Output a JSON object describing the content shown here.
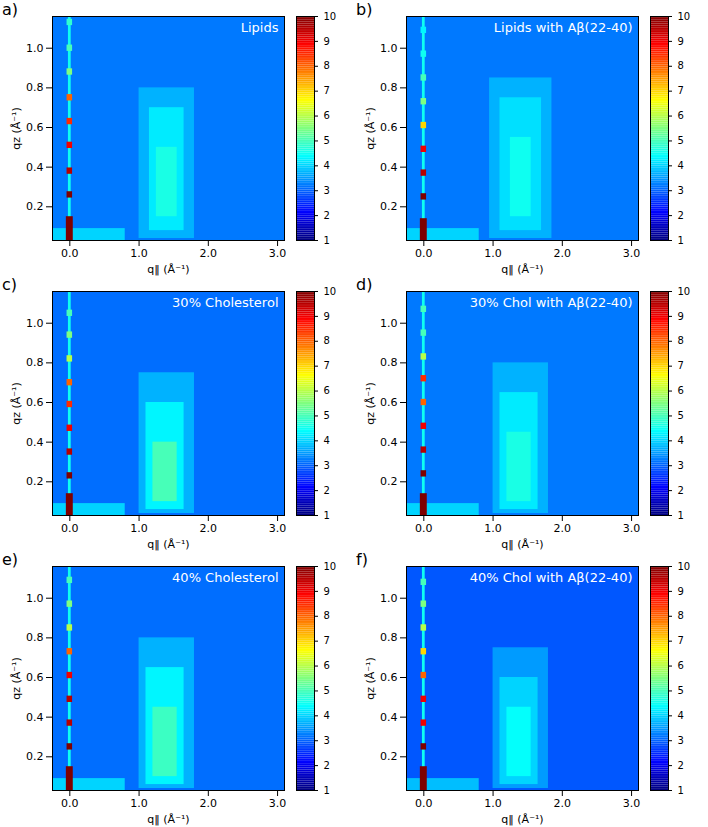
{
  "chart_data": [
    {
      "type": "heatmap",
      "panel": "a)",
      "title": "Lipids",
      "x_label": "q‖ (Å⁻¹)",
      "y_label": "qz (Å⁻¹)",
      "xlim": [
        -0.25,
        3.1
      ],
      "xticks": [
        0,
        1,
        2,
        3
      ],
      "ylim": [
        0.03,
        1.16
      ],
      "yticks": [
        0.2,
        0.4,
        0.6,
        0.8,
        1
      ],
      "colorbar": {
        "lim": [
          1,
          10
        ],
        "ticks": [
          1,
          2,
          3,
          4,
          5,
          6,
          7,
          8,
          9,
          10
        ]
      },
      "cells": [
        {
          "x": [
            -0.25,
            3.1
          ],
          "y": [
            0.03,
            1.16
          ],
          "value": 3.2
        },
        {
          "x": [
            -0.25,
            0.8
          ],
          "y": [
            0.03,
            0.09
          ],
          "value": 4.0
        },
        {
          "x": [
            1.0,
            1.8
          ],
          "y": [
            0.04,
            0.8
          ],
          "value": 3.7
        },
        {
          "x": [
            1.15,
            1.65
          ],
          "y": [
            0.08,
            0.7
          ],
          "value": 4.2
        },
        {
          "x": [
            1.25,
            1.55
          ],
          "y": [
            0.15,
            0.5
          ],
          "value": 4.6
        },
        {
          "x": [
            -0.02,
            0.02
          ],
          "y": [
            0.03,
            1.16
          ],
          "value": 4.5
        },
        {
          "x": [
            -0.05,
            0.05
          ],
          "y": [
            0.03,
            0.15
          ],
          "value": 10
        },
        {
          "x": [
            -0.04,
            0.04
          ],
          "y": [
            0.244,
            0.276
          ],
          "value": 10
        },
        {
          "x": [
            -0.04,
            0.04
          ],
          "y": [
            0.364,
            0.396
          ],
          "value": 9.5
        },
        {
          "x": [
            -0.04,
            0.04
          ],
          "y": [
            0.494,
            0.526
          ],
          "value": 9
        },
        {
          "x": [
            -0.04,
            0.04
          ],
          "y": [
            0.614,
            0.646
          ],
          "value": 8.5
        },
        {
          "x": [
            -0.04,
            0.04
          ],
          "y": [
            0.734,
            0.766
          ],
          "value": 8
        },
        {
          "x": [
            -0.04,
            0.04
          ],
          "y": [
            0.864,
            0.896
          ],
          "value": 5.5
        },
        {
          "x": [
            -0.04,
            0.04
          ],
          "y": [
            0.984,
            1.016
          ],
          "value": 5
        },
        {
          "x": [
            -0.04,
            0.04
          ],
          "y": [
            1.114,
            1.146
          ],
          "value": 4.8
        }
      ]
    },
    {
      "type": "heatmap",
      "panel": "b)",
      "title": "Lipids with Aβ(22-40)",
      "x_label": "q‖ (Å⁻¹)",
      "y_label": "qz (Å⁻¹)",
      "xlim": [
        -0.25,
        3.1
      ],
      "xticks": [
        0,
        1,
        2,
        3
      ],
      "ylim": [
        0.03,
        1.16
      ],
      "yticks": [
        0.2,
        0.4,
        0.6,
        0.8,
        1
      ],
      "colorbar": {
        "lim": [
          1,
          10
        ],
        "ticks": [
          1,
          2,
          3,
          4,
          5,
          6,
          7,
          8,
          9,
          10
        ]
      },
      "cells": [
        {
          "x": [
            -0.25,
            3.1
          ],
          "y": [
            0.03,
            1.16
          ],
          "value": 3.2
        },
        {
          "x": [
            -0.25,
            0.8
          ],
          "y": [
            0.03,
            0.09
          ],
          "value": 4.0
        },
        {
          "x": [
            0.95,
            1.85
          ],
          "y": [
            0.04,
            0.85
          ],
          "value": 3.7
        },
        {
          "x": [
            1.1,
            1.7
          ],
          "y": [
            0.08,
            0.75
          ],
          "value": 4.1
        },
        {
          "x": [
            1.25,
            1.55
          ],
          "y": [
            0.15,
            0.55
          ],
          "value": 4.5
        },
        {
          "x": [
            -0.02,
            0.02
          ],
          "y": [
            0.03,
            1.16
          ],
          "value": 4.5
        },
        {
          "x": [
            -0.05,
            0.05
          ],
          "y": [
            0.03,
            0.14
          ],
          "value": 10
        },
        {
          "x": [
            -0.04,
            0.04
          ],
          "y": [
            0.234,
            0.266
          ],
          "value": 10
        },
        {
          "x": [
            -0.04,
            0.04
          ],
          "y": [
            0.354,
            0.386
          ],
          "value": 9.5
        },
        {
          "x": [
            -0.04,
            0.04
          ],
          "y": [
            0.474,
            0.506
          ],
          "value": 9
        },
        {
          "x": [
            -0.04,
            0.04
          ],
          "y": [
            0.594,
            0.626
          ],
          "value": 7
        },
        {
          "x": [
            -0.04,
            0.04
          ],
          "y": [
            0.714,
            0.746
          ],
          "value": 5.5
        },
        {
          "x": [
            -0.04,
            0.04
          ],
          "y": [
            0.834,
            0.866
          ],
          "value": 5
        },
        {
          "x": [
            -0.04,
            0.04
          ],
          "y": [
            0.954,
            0.986
          ],
          "value": 4.5
        },
        {
          "x": [
            -0.04,
            0.04
          ],
          "y": [
            1.074,
            1.106
          ],
          "value": 4.3
        }
      ]
    },
    {
      "type": "heatmap",
      "panel": "c)",
      "title": "30% Cholesterol",
      "x_label": "q‖ (Å⁻¹)",
      "y_label": "qz (Å⁻¹)",
      "xlim": [
        -0.25,
        3.1
      ],
      "xticks": [
        0,
        1,
        2,
        3
      ],
      "ylim": [
        0.03,
        1.16
      ],
      "yticks": [
        0.2,
        0.4,
        0.6,
        0.8,
        1
      ],
      "colorbar": {
        "lim": [
          1,
          10
        ],
        "ticks": [
          1,
          2,
          3,
          4,
          5,
          6,
          7,
          8,
          9,
          10
        ]
      },
      "cells": [
        {
          "x": [
            -0.25,
            3.1
          ],
          "y": [
            0.03,
            1.16
          ],
          "value": 3.1
        },
        {
          "x": [
            -0.25,
            0.8
          ],
          "y": [
            0.03,
            0.09
          ],
          "value": 4.0
        },
        {
          "x": [
            1.0,
            1.8
          ],
          "y": [
            0.04,
            0.75
          ],
          "value": 3.7
        },
        {
          "x": [
            1.1,
            1.65
          ],
          "y": [
            0.06,
            0.6
          ],
          "value": 4.3
        },
        {
          "x": [
            1.2,
            1.55
          ],
          "y": [
            0.1,
            0.4
          ],
          "value": 5.0
        },
        {
          "x": [
            -0.02,
            0.02
          ],
          "y": [
            0.03,
            1.16
          ],
          "value": 4.5
        },
        {
          "x": [
            -0.05,
            0.05
          ],
          "y": [
            0.03,
            0.14
          ],
          "value": 10
        },
        {
          "x": [
            -0.04,
            0.04
          ],
          "y": [
            0.214,
            0.246
          ],
          "value": 10
        },
        {
          "x": [
            -0.04,
            0.04
          ],
          "y": [
            0.334,
            0.366
          ],
          "value": 9.5
        },
        {
          "x": [
            -0.04,
            0.04
          ],
          "y": [
            0.454,
            0.486
          ],
          "value": 9
        },
        {
          "x": [
            -0.04,
            0.04
          ],
          "y": [
            0.574,
            0.606
          ],
          "value": 8.5
        },
        {
          "x": [
            -0.04,
            0.04
          ],
          "y": [
            0.684,
            0.716
          ],
          "value": 8
        },
        {
          "x": [
            -0.04,
            0.04
          ],
          "y": [
            0.804,
            0.836
          ],
          "value": 6
        },
        {
          "x": [
            -0.04,
            0.04
          ],
          "y": [
            0.924,
            0.956
          ],
          "value": 5.5
        },
        {
          "x": [
            -0.04,
            0.04
          ],
          "y": [
            1.034,
            1.066
          ],
          "value": 5
        }
      ]
    },
    {
      "type": "heatmap",
      "panel": "d)",
      "title": "30% Chol with Aβ(22-40)",
      "x_label": "q‖ (Å⁻¹)",
      "y_label": "qz (Å⁻¹)",
      "xlim": [
        -0.25,
        3.1
      ],
      "xticks": [
        0,
        1,
        2,
        3
      ],
      "ylim": [
        0.03,
        1.16
      ],
      "yticks": [
        0.2,
        0.4,
        0.6,
        0.8,
        1
      ],
      "colorbar": {
        "lim": [
          1,
          10
        ],
        "ticks": [
          1,
          2,
          3,
          4,
          5,
          6,
          7,
          8,
          9,
          10
        ]
      },
      "cells": [
        {
          "x": [
            -0.25,
            3.1
          ],
          "y": [
            0.03,
            1.16
          ],
          "value": 3.2
        },
        {
          "x": [
            -0.25,
            0.8
          ],
          "y": [
            0.03,
            0.09
          ],
          "value": 4.0
        },
        {
          "x": [
            1.0,
            1.8
          ],
          "y": [
            0.04,
            0.8
          ],
          "value": 3.7
        },
        {
          "x": [
            1.1,
            1.65
          ],
          "y": [
            0.06,
            0.65
          ],
          "value": 4.2
        },
        {
          "x": [
            1.2,
            1.55
          ],
          "y": [
            0.1,
            0.45
          ],
          "value": 4.6
        },
        {
          "x": [
            -0.02,
            0.02
          ],
          "y": [
            0.03,
            1.16
          ],
          "value": 4.5
        },
        {
          "x": [
            -0.05,
            0.05
          ],
          "y": [
            0.03,
            0.14
          ],
          "value": 10
        },
        {
          "x": [
            -0.04,
            0.04
          ],
          "y": [
            0.224,
            0.256
          ],
          "value": 10
        },
        {
          "x": [
            -0.04,
            0.04
          ],
          "y": [
            0.344,
            0.376
          ],
          "value": 9.5
        },
        {
          "x": [
            -0.04,
            0.04
          ],
          "y": [
            0.464,
            0.496
          ],
          "value": 9
        },
        {
          "x": [
            -0.04,
            0.04
          ],
          "y": [
            0.584,
            0.616
          ],
          "value": 8
        },
        {
          "x": [
            -0.04,
            0.04
          ],
          "y": [
            0.704,
            0.736
          ],
          "value": 8.5
        },
        {
          "x": [
            -0.04,
            0.04
          ],
          "y": [
            0.814,
            0.846
          ],
          "value": 6
        },
        {
          "x": [
            -0.04,
            0.04
          ],
          "y": [
            0.934,
            0.966
          ],
          "value": 5
        },
        {
          "x": [
            -0.04,
            0.04
          ],
          "y": [
            1.054,
            1.086
          ],
          "value": 5
        }
      ]
    },
    {
      "type": "heatmap",
      "panel": "e)",
      "title": "40% Cholesterol",
      "x_label": "q‖ (Å⁻¹)",
      "y_label": "qz (Å⁻¹)",
      "xlim": [
        -0.25,
        3.1
      ],
      "xticks": [
        0,
        1,
        2,
        3
      ],
      "ylim": [
        0.03,
        1.16
      ],
      "yticks": [
        0.2,
        0.4,
        0.6,
        0.8,
        1
      ],
      "colorbar": {
        "lim": [
          1,
          10
        ],
        "ticks": [
          1,
          2,
          3,
          4,
          5,
          6,
          7,
          8,
          9,
          10
        ]
      },
      "cells": [
        {
          "x": [
            -0.25,
            3.1
          ],
          "y": [
            0.03,
            1.16
          ],
          "value": 3.1
        },
        {
          "x": [
            -0.25,
            0.8
          ],
          "y": [
            0.03,
            0.09
          ],
          "value": 4.0
        },
        {
          "x": [
            1.0,
            1.8
          ],
          "y": [
            0.04,
            0.8
          ],
          "value": 3.7
        },
        {
          "x": [
            1.1,
            1.65
          ],
          "y": [
            0.06,
            0.65
          ],
          "value": 4.3
        },
        {
          "x": [
            1.2,
            1.55
          ],
          "y": [
            0.1,
            0.45
          ],
          "value": 4.9
        },
        {
          "x": [
            -0.02,
            0.02
          ],
          "y": [
            0.03,
            1.16
          ],
          "value": 4.5
        },
        {
          "x": [
            -0.05,
            0.05
          ],
          "y": [
            0.03,
            0.15
          ],
          "value": 10
        },
        {
          "x": [
            -0.04,
            0.04
          ],
          "y": [
            0.234,
            0.266
          ],
          "value": 10
        },
        {
          "x": [
            -0.04,
            0.04
          ],
          "y": [
            0.354,
            0.386
          ],
          "value": 9.5
        },
        {
          "x": [
            -0.04,
            0.04
          ],
          "y": [
            0.474,
            0.506
          ],
          "value": 9.5
        },
        {
          "x": [
            -0.04,
            0.04
          ],
          "y": [
            0.594,
            0.626
          ],
          "value": 9
        },
        {
          "x": [
            -0.04,
            0.04
          ],
          "y": [
            0.714,
            0.746
          ],
          "value": 8
        },
        {
          "x": [
            -0.04,
            0.04
          ],
          "y": [
            0.834,
            0.866
          ],
          "value": 6
        },
        {
          "x": [
            -0.04,
            0.04
          ],
          "y": [
            0.954,
            0.986
          ],
          "value": 5.5
        },
        {
          "x": [
            -0.04,
            0.04
          ],
          "y": [
            1.074,
            1.106
          ],
          "value": 5
        }
      ]
    },
    {
      "type": "heatmap",
      "panel": "f)",
      "title": "40% Chol with Aβ(22-40)",
      "x_label": "q‖ (Å⁻¹)",
      "y_label": "qz (Å⁻¹)",
      "xlim": [
        -0.25,
        3.1
      ],
      "xticks": [
        0,
        1,
        2,
        3
      ],
      "ylim": [
        0.03,
        1.16
      ],
      "yticks": [
        0.2,
        0.4,
        0.6,
        0.8,
        1
      ],
      "colorbar": {
        "lim": [
          1,
          10
        ],
        "ticks": [
          1,
          2,
          3,
          4,
          5,
          6,
          7,
          8,
          9,
          10
        ]
      },
      "cells": [
        {
          "x": [
            -0.25,
            3.1
          ],
          "y": [
            0.03,
            1.16
          ],
          "value": 2.9
        },
        {
          "x": [
            -0.25,
            0.8
          ],
          "y": [
            0.03,
            0.09
          ],
          "value": 3.8
        },
        {
          "x": [
            1.0,
            1.8
          ],
          "y": [
            0.04,
            0.75
          ],
          "value": 3.5
        },
        {
          "x": [
            1.1,
            1.65
          ],
          "y": [
            0.06,
            0.6
          ],
          "value": 4.0
        },
        {
          "x": [
            1.2,
            1.55
          ],
          "y": [
            0.1,
            0.45
          ],
          "value": 4.4
        },
        {
          "x": [
            -0.02,
            0.02
          ],
          "y": [
            0.03,
            1.16
          ],
          "value": 4.5
        },
        {
          "x": [
            -0.05,
            0.05
          ],
          "y": [
            0.03,
            0.15
          ],
          "value": 10
        },
        {
          "x": [
            -0.04,
            0.04
          ],
          "y": [
            0.234,
            0.266
          ],
          "value": 10
        },
        {
          "x": [
            -0.04,
            0.04
          ],
          "y": [
            0.354,
            0.386
          ],
          "value": 9
        },
        {
          "x": [
            -0.04,
            0.04
          ],
          "y": [
            0.474,
            0.506
          ],
          "value": 9
        },
        {
          "x": [
            -0.04,
            0.04
          ],
          "y": [
            0.594,
            0.626
          ],
          "value": 8
        },
        {
          "x": [
            -0.04,
            0.04
          ],
          "y": [
            0.714,
            0.746
          ],
          "value": 7
        },
        {
          "x": [
            -0.04,
            0.04
          ],
          "y": [
            0.834,
            0.866
          ],
          "value": 6
        },
        {
          "x": [
            -0.04,
            0.04
          ],
          "y": [
            0.954,
            0.986
          ],
          "value": 5.5
        },
        {
          "x": [
            -0.04,
            0.04
          ],
          "y": [
            1.064,
            1.096
          ],
          "value": 5
        }
      ]
    }
  ]
}
